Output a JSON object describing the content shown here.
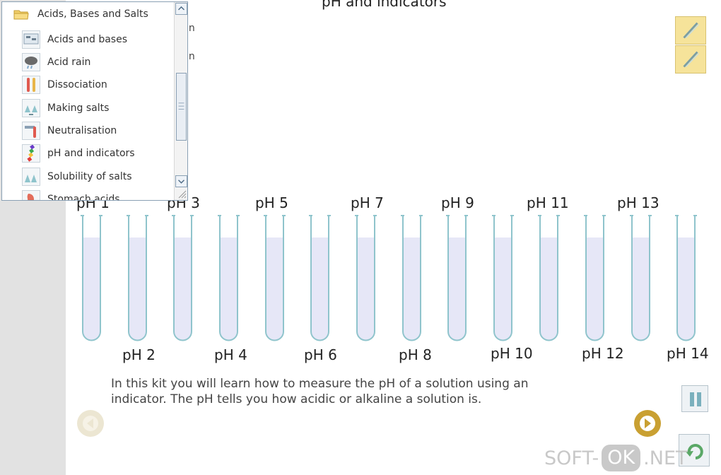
{
  "page": {
    "title": "pH and indicators"
  },
  "indicator_labels": [
    "in",
    "in"
  ],
  "tree": {
    "title": "Acids, Bases and Salts",
    "items": [
      {
        "label": "Acids and bases",
        "icon": "acids-bases-icon"
      },
      {
        "label": "Acid rain",
        "icon": "acid-rain-icon"
      },
      {
        "label": "Dissociation",
        "icon": "dissociation-icon"
      },
      {
        "label": "Making salts",
        "icon": "making-salts-icon"
      },
      {
        "label": "Neutralisation",
        "icon": "neutralisation-icon"
      },
      {
        "label": "pH and indicators",
        "icon": "ph-indicators-icon"
      },
      {
        "label": "Solubility of salts",
        "icon": "solubility-icon"
      },
      {
        "label": "Stomach acids",
        "icon": "stomach-icon"
      }
    ]
  },
  "tubes": [
    {
      "label": "pH 1"
    },
    {
      "label": "pH 2"
    },
    {
      "label": "pH 3"
    },
    {
      "label": "pH 4"
    },
    {
      "label": "pH 5"
    },
    {
      "label": "pH 6"
    },
    {
      "label": "pH 7"
    },
    {
      "label": "pH 8"
    },
    {
      "label": "pH 9"
    },
    {
      "label": "pH 10"
    },
    {
      "label": "pH 11"
    },
    {
      "label": "pH 12"
    },
    {
      "label": "pH 13"
    },
    {
      "label": "pH 14"
    }
  ],
  "intro": {
    "line1": "In this kit you will learn how to measure the pH of a solution using an",
    "line2": "indicator. The pH tells you how acidic or alkaline a solution is."
  },
  "watermark": {
    "left": "SOFT-",
    "ok": "OK",
    "right": ".NET"
  },
  "colors": {
    "tube_liquid": "#e6e7f7",
    "tube_outline": "#8fc4cc",
    "next_button": "#c9a032",
    "pencil_button": "#f6e39a"
  }
}
